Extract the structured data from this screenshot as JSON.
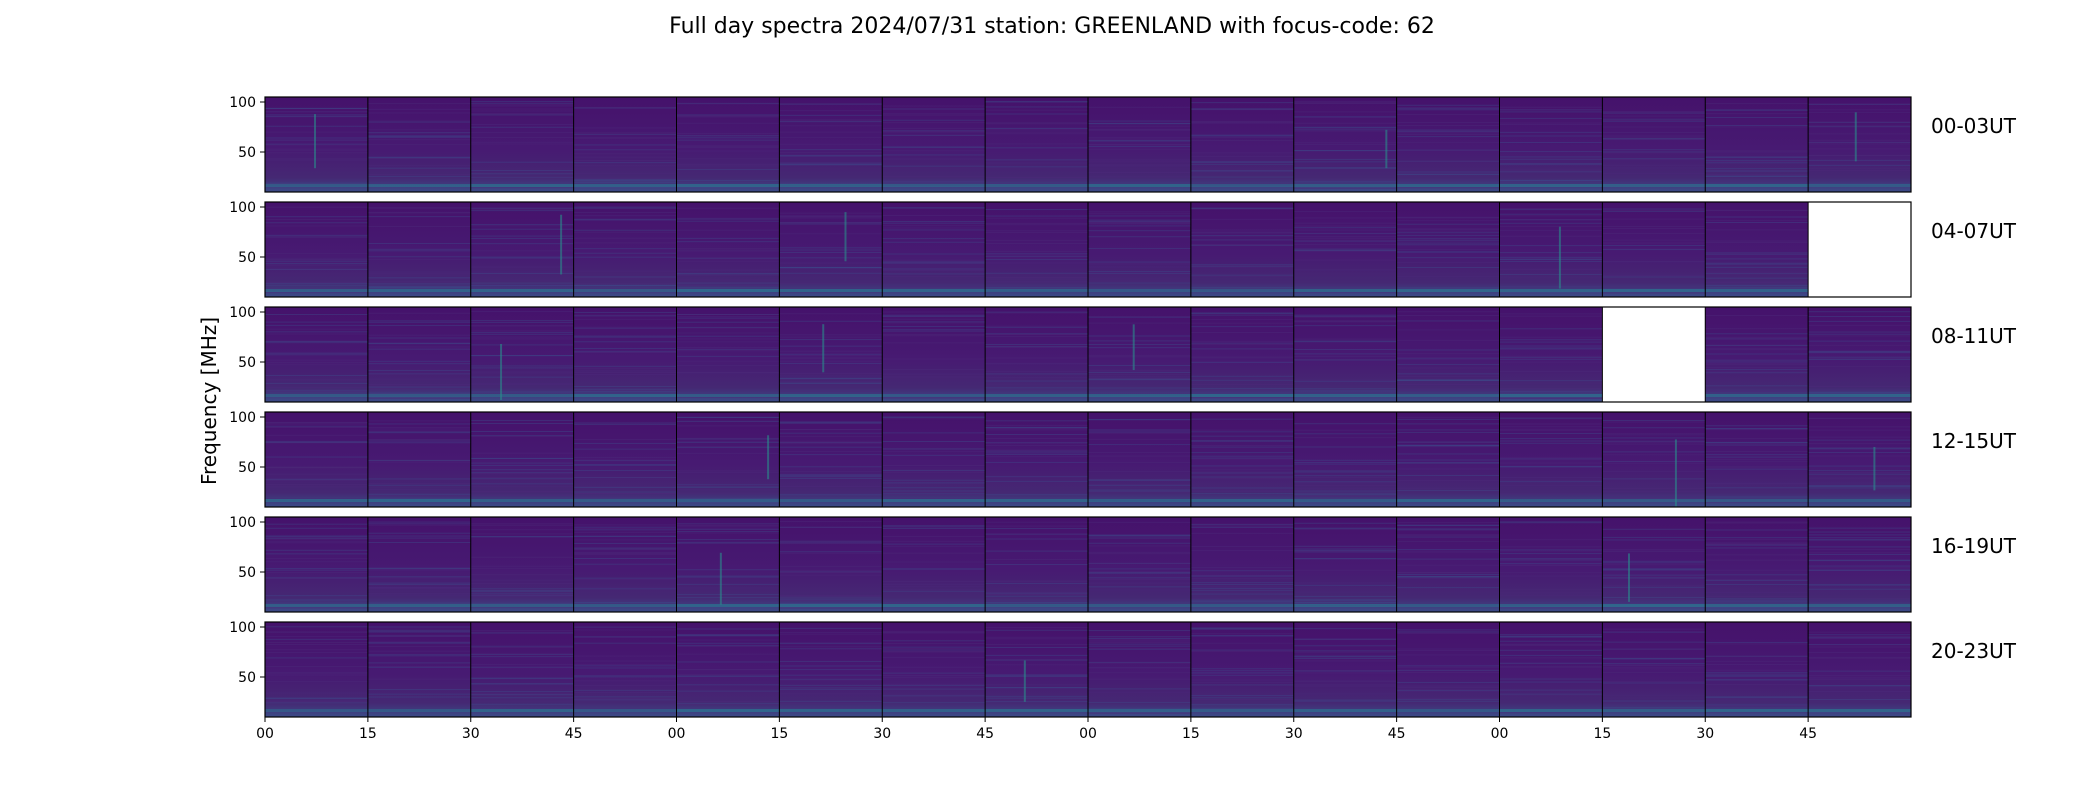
{
  "chart_data": {
    "type": "heatmap",
    "title": "Full day spectra 2024/07/31 station: GREENLAND with focus-code: 62",
    "ylabel": "Frequency [MHz]",
    "ylim": [
      10,
      105
    ],
    "yticks": [
      50,
      100
    ],
    "x_tick_labels": [
      "00",
      "15",
      "30",
      "45",
      "00",
      "15",
      "30",
      "45",
      "00",
      "15",
      "30",
      "45",
      "00",
      "15",
      "30",
      "45"
    ],
    "minutes_per_panel": 15,
    "colormap": [
      "#440154",
      "#3b528b",
      "#21918c",
      "#5ec962",
      "#fde725"
    ],
    "rows": [
      {
        "label": "00-03UT",
        "missing_panels": []
      },
      {
        "label": "04-07UT",
        "missing_panels": [
          15
        ]
      },
      {
        "label": "08-11UT",
        "missing_panels": [
          13
        ]
      },
      {
        "label": "12-15UT",
        "missing_panels": []
      },
      {
        "label": "16-19UT",
        "missing_panels": []
      },
      {
        "label": "20-23UT",
        "missing_panels": []
      }
    ]
  }
}
